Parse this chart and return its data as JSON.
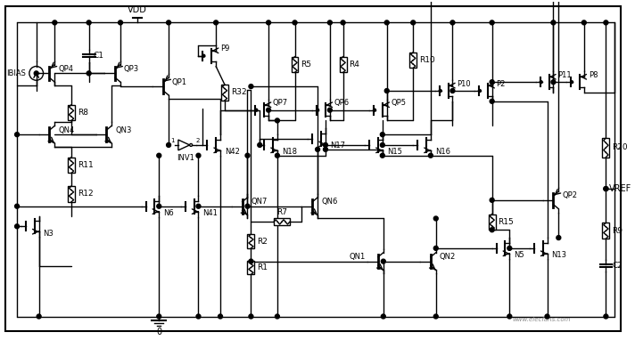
{
  "title": "",
  "bg_color": "#ffffff",
  "border_color": "#000000",
  "line_color": "#000000",
  "text_color": "#000000",
  "vdd_label": "VDD",
  "gnd_label": "0",
  "vref_label": "VREF",
  "ibias_label": "IBIAS",
  "components": {
    "resistors": [
      "R1",
      "R2",
      "R7",
      "R8",
      "R9",
      "R10",
      "R11",
      "R12",
      "R15",
      "R20",
      "R32",
      "R4",
      "R5",
      "C1",
      "C2"
    ],
    "transistors_pmos": [
      "QP1",
      "QP2",
      "QP3",
      "QP4",
      "QP5",
      "QP6",
      "QP7",
      "P2",
      "P8",
      "P9",
      "P10",
      "P11"
    ],
    "transistors_nmos": [
      "QN1",
      "QN2",
      "QN3",
      "QN4",
      "QN6",
      "QN7",
      "N3",
      "N5",
      "N6",
      "N13",
      "N15",
      "N16",
      "N17",
      "N18",
      "N41",
      "N42"
    ],
    "other": [
      "INV1"
    ]
  },
  "watermark": "www.elecfans.com",
  "fig_width": 7.12,
  "fig_height": 3.82,
  "dpi": 100
}
